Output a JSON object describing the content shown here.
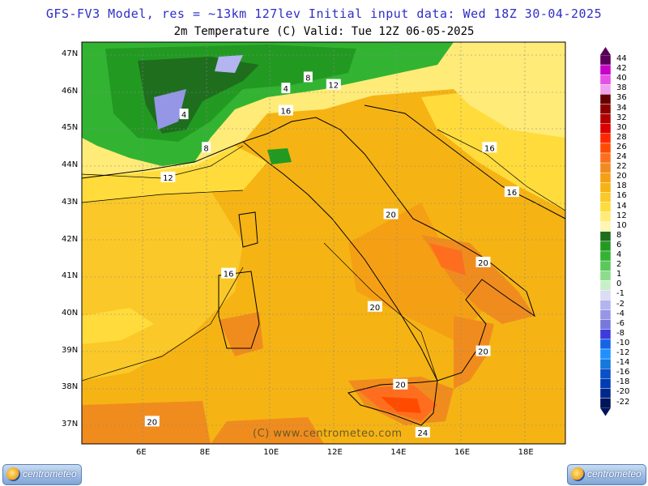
{
  "title_line1": "GFS-FV3 Model, res = ~13km 127lev   Initial input data: Wed 18Z 30-04-2025",
  "title_line2": "2m Temperature (C)  Valid: Tue 12Z 06-05-2025",
  "watermark": "(C) www.centrometeo.com",
  "logo_left": "centrometeo",
  "logo_right": "centrometeo",
  "map_data": {
    "lat_labels": [
      "47N",
      "46N",
      "45N",
      "44N",
      "43N",
      "42N",
      "41N",
      "40N",
      "39N",
      "38N",
      "37N"
    ],
    "lon_labels": [
      "6E",
      "8E",
      "10E",
      "12E",
      "14E",
      "16E",
      "18E"
    ],
    "contour_labels": [
      {
        "text": "4",
        "lon": 7.3,
        "lat": 45.4
      },
      {
        "text": "4",
        "lon": 10.5,
        "lat": 46.1
      },
      {
        "text": "8",
        "lon": 11.2,
        "lat": 46.4
      },
      {
        "text": "12",
        "lon": 12.0,
        "lat": 46.2
      },
      {
        "text": "8",
        "lon": 8.0,
        "lat": 44.5
      },
      {
        "text": "12",
        "lon": 6.8,
        "lat": 43.7
      },
      {
        "text": "16",
        "lon": 10.5,
        "lat": 45.5
      },
      {
        "text": "16",
        "lon": 16.9,
        "lat": 44.5
      },
      {
        "text": "16",
        "lon": 17.6,
        "lat": 43.3
      },
      {
        "text": "20",
        "lon": 13.8,
        "lat": 42.7
      },
      {
        "text": "20",
        "lon": 16.7,
        "lat": 41.4
      },
      {
        "text": "16",
        "lon": 8.7,
        "lat": 41.1
      },
      {
        "text": "20",
        "lon": 13.3,
        "lat": 40.2
      },
      {
        "text": "20",
        "lon": 16.7,
        "lat": 39.0
      },
      {
        "text": "20",
        "lon": 14.1,
        "lat": 38.1
      },
      {
        "text": "20",
        "lon": 6.3,
        "lat": 37.1
      },
      {
        "text": "24",
        "lon": 14.8,
        "lat": 36.8
      }
    ]
  },
  "legend": [
    {
      "label": "44",
      "color": "#5a005a"
    },
    {
      "label": "42",
      "color": "#c800c8"
    },
    {
      "label": "40",
      "color": "#e650e6"
    },
    {
      "label": "38",
      "color": "#f0a0f0"
    },
    {
      "label": "36",
      "color": "#640000"
    },
    {
      "label": "34",
      "color": "#8c0000"
    },
    {
      "label": "32",
      "color": "#b40000"
    },
    {
      "label": "30",
      "color": "#dc0000"
    },
    {
      "label": "28",
      "color": "#ff2800"
    },
    {
      "label": "26",
      "color": "#ff4b00"
    },
    {
      "label": "24",
      "color": "#ff6e1e"
    },
    {
      "label": "22",
      "color": "#f08c1e"
    },
    {
      "label": "20",
      "color": "#f5a014"
    },
    {
      "label": "18",
      "color": "#f5b414"
    },
    {
      "label": "16",
      "color": "#fac828"
    },
    {
      "label": "14",
      "color": "#ffdc3c"
    },
    {
      "label": "12",
      "color": "#ffeb78"
    },
    {
      "label": "10",
      "color": "#fff5b4"
    },
    {
      "label": "8",
      "color": "#1e6e1e"
    },
    {
      "label": "6",
      "color": "#229a22"
    },
    {
      "label": "4",
      "color": "#32b432"
    },
    {
      "label": "2",
      "color": "#5ac85a"
    },
    {
      "label": "1",
      "color": "#8cdc8c"
    },
    {
      "label": "0",
      "color": "#c8f0c8"
    },
    {
      "label": "-1",
      "color": "#dcdcf5"
    },
    {
      "label": "-2",
      "color": "#b4b4f0"
    },
    {
      "label": "-4",
      "color": "#9696e6"
    },
    {
      "label": "-6",
      "color": "#7878dc"
    },
    {
      "label": "-8",
      "color": "#3c3cdc"
    },
    {
      "label": "-10",
      "color": "#1464e6"
    },
    {
      "label": "-12",
      "color": "#1e90ff"
    },
    {
      "label": "-14",
      "color": "#1478dc"
    },
    {
      "label": "-16",
      "color": "#0a50c8"
    },
    {
      "label": "-18",
      "color": "#003cb4"
    },
    {
      "label": "-20",
      "color": "#00288c"
    },
    {
      "label": "-22",
      "color": "#00145a"
    }
  ]
}
